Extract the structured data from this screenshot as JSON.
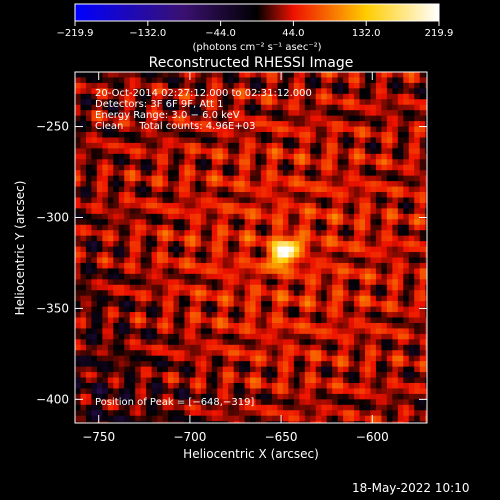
{
  "chart_data": {
    "type": "heatmap",
    "title": "Reconstructed RHESSI Image",
    "xlabel": "Heliocentric X (arcsec)",
    "ylabel": "Heliocentric Y (arcsec)",
    "xlim": [
      -763,
      -570
    ],
    "ylim": [
      -413,
      -220
    ],
    "x_ticks": [
      -750,
      -700,
      -650,
      -600
    ],
    "y_ticks": [
      -250,
      -300,
      -350,
      -400
    ],
    "x_tick_labels": [
      "−750",
      "−700",
      "−650",
      "−600"
    ],
    "y_tick_labels": [
      "−250",
      "−300",
      "−350",
      "−400"
    ],
    "colorbar": {
      "min": -219.9,
      "max": 219.9,
      "tick_labels": [
        "−219.9",
        "−132.0",
        "−44.0",
        "44.0",
        "132.0",
        "219.9"
      ],
      "label": "(photons cm⁻² s⁻¹ asec⁻²)",
      "colors": [
        "#0000ff",
        "#3a1170",
        "#000000",
        "#ee1100",
        "#ffcc00",
        "#ffffff"
      ]
    },
    "peak": {
      "x": -648,
      "y": -319,
      "value": 219.9
    }
  },
  "annotations": {
    "line1": "20-Oct-2014 02:27:12.000 to 02:31:12.000",
    "line2": "Detectors: 3F 6F 9F, Att 1",
    "line3": "Energy Range: 3.0 − 6.0 keV",
    "line4": "Clean     Total counts: 4.96E+03",
    "peak_label": "Position of Peak = [−648,−319]"
  },
  "footer": {
    "timestamp": "18-May-2022 10:10"
  }
}
